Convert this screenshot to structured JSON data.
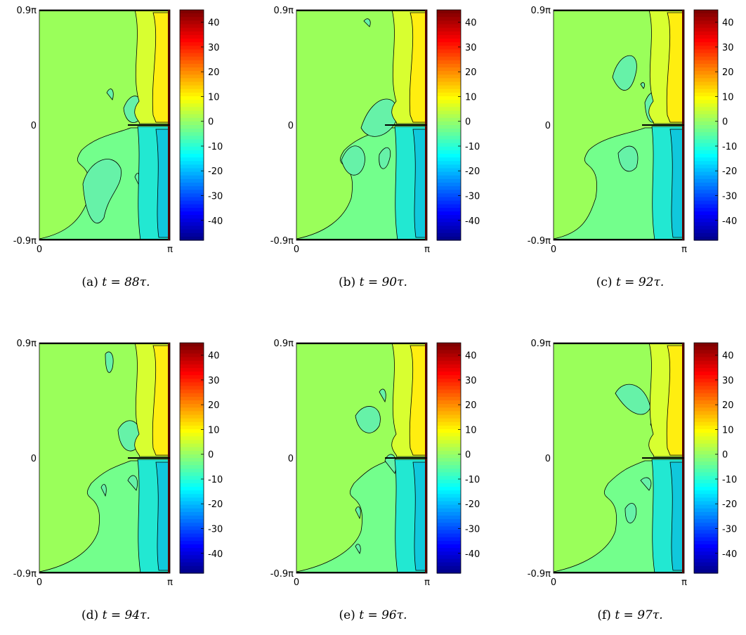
{
  "colors": {
    "upper_field": "#9aff5a",
    "lower_field": "#73ff8c",
    "eddy": "#66f2a8",
    "yellow": "#ffee10",
    "yellow_light": "#d8ff30",
    "cyan": "#22e8d2",
    "cyan_deep": "#10c8dc",
    "contour": "#000000"
  },
  "chart_data": [
    {
      "type": "heatmap",
      "caption_label": "(a)",
      "caption_value": "t = 88τ.",
      "x_ticks": [
        "0",
        "π"
      ],
      "y_ticks": [
        "0.9π",
        "0",
        "-0.9π"
      ],
      "xlim": [
        "0",
        "π"
      ],
      "ylim": [
        "-0.9π",
        "0.9π"
      ],
      "colorbar": {
        "ticks": [
          40,
          30,
          20,
          10,
          0,
          -10,
          -20,
          -30,
          -40
        ],
        "range": [
          -48,
          45
        ],
        "colormap": "jet"
      }
    },
    {
      "type": "heatmap",
      "caption_label": "(b)",
      "caption_value": "t = 90τ.",
      "x_ticks": [
        "0",
        "π"
      ],
      "y_ticks": [
        "0.9π",
        "0",
        "-0.9π"
      ],
      "xlim": [
        "0",
        "π"
      ],
      "ylim": [
        "-0.9π",
        "0.9π"
      ],
      "colorbar": {
        "ticks": [
          40,
          30,
          20,
          10,
          0,
          -10,
          -20,
          -30,
          -40
        ],
        "range": [
          -48,
          45
        ],
        "colormap": "jet"
      }
    },
    {
      "type": "heatmap",
      "caption_label": "(c)",
      "caption_value": "t = 92τ.",
      "x_ticks": [
        "0",
        "π"
      ],
      "y_ticks": [
        "0.9π",
        "0",
        "-0.9π"
      ],
      "xlim": [
        "0",
        "π"
      ],
      "ylim": [
        "-0.9π",
        "0.9π"
      ],
      "colorbar": {
        "ticks": [
          40,
          30,
          20,
          10,
          0,
          -10,
          -20,
          -30,
          -40
        ],
        "range": [
          -48,
          45
        ],
        "colormap": "jet"
      }
    },
    {
      "type": "heatmap",
      "caption_label": "(d)",
      "caption_value": "t = 94τ.",
      "x_ticks": [
        "0",
        "π"
      ],
      "y_ticks": [
        "0.9π",
        "0",
        "-0.9π"
      ],
      "xlim": [
        "0",
        "π"
      ],
      "ylim": [
        "-0.9π",
        "0.9π"
      ],
      "colorbar": {
        "ticks": [
          40,
          30,
          20,
          10,
          0,
          -10,
          -20,
          -30,
          -40
        ],
        "range": [
          -48,
          45
        ],
        "colormap": "jet"
      }
    },
    {
      "type": "heatmap",
      "caption_label": "(e)",
      "caption_value": "t = 96τ.",
      "x_ticks": [
        "0",
        "π"
      ],
      "y_ticks": [
        "0.9π",
        "0",
        "-0.9π"
      ],
      "xlim": [
        "0",
        "π"
      ],
      "ylim": [
        "-0.9π",
        "0.9π"
      ],
      "colorbar": {
        "ticks": [
          40,
          30,
          20,
          10,
          0,
          -10,
          -20,
          -30,
          -40
        ],
        "range": [
          -48,
          45
        ],
        "colormap": "jet"
      }
    },
    {
      "type": "heatmap",
      "caption_label": "(f)",
      "caption_value": "t = 97τ.",
      "x_ticks": [
        "0",
        "π"
      ],
      "y_ticks": [
        "0.9π",
        "0",
        "-0.9π"
      ],
      "xlim": [
        "0",
        "π"
      ],
      "ylim": [
        "-0.9π",
        "0.9π"
      ],
      "colorbar": {
        "ticks": [
          40,
          30,
          20,
          10,
          0,
          -10,
          -20,
          -30,
          -40
        ],
        "range": [
          -48,
          45
        ],
        "colormap": "jet"
      }
    }
  ]
}
